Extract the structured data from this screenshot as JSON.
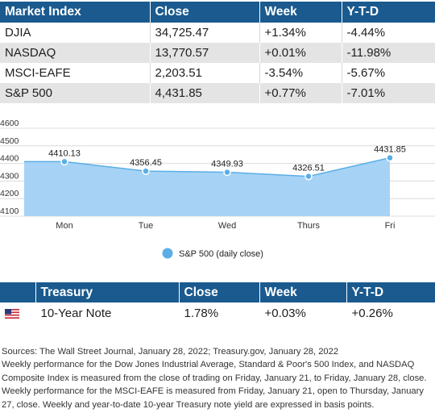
{
  "market_table": {
    "headers": [
      "Market Index",
      "Close",
      "Week",
      "Y-T-D"
    ],
    "rows": [
      [
        "DJIA",
        "34,725.47",
        "+1.34%",
        "-4.44%"
      ],
      [
        "NASDAQ",
        "13,770.57",
        "+0.01%",
        "-11.98%"
      ],
      [
        "MSCI-EAFE",
        "2,203.51",
        "-3.54%",
        "-5.67%"
      ],
      [
        "S&P 500",
        "4,431.85",
        "+0.77%",
        "-7.01%"
      ]
    ]
  },
  "chart_data": {
    "type": "area",
    "categories": [
      "Mon",
      "Tue",
      "Wed",
      "Thurs",
      "Fri"
    ],
    "series": [
      {
        "name": "S&P 500 (daily close)",
        "values": [
          4410.13,
          4356.45,
          4349.93,
          4326.51,
          4431.85
        ],
        "color": "#5aaee6"
      }
    ],
    "data_labels": [
      "4410.13",
      "4356.45",
      "4349.93",
      "4326.51",
      "4431.85"
    ],
    "y_ticks": [
      "4100",
      "4200",
      "4300",
      "4400",
      "4500",
      "4600"
    ],
    "ylim": [
      4100,
      4600
    ],
    "fill_color": "#a6d3f5",
    "grid": true,
    "legend_position": "bottom-center",
    "title": "",
    "xlabel": "",
    "ylabel": ""
  },
  "treasury_table": {
    "headers": [
      "Treasury",
      "Close",
      "Week",
      "Y-T-D"
    ],
    "row": {
      "icon": "us-flag-icon",
      "label": "10-Year Note",
      "close": "1.78%",
      "week": "+0.03%",
      "ytd": "+0.26%"
    }
  },
  "notes": {
    "sources": "Sources: The Wall Street Journal, January 28, 2022; Treasury.gov, January 28, 2022",
    "body": "Weekly performance for the Dow Jones Industrial Average, Standard & Poor's 500 Index, and NASDAQ Composite Index is measured from the close of trading on Friday, January 21, to Friday, January 28, close. Weekly performance for the MSCI-EAFE is measured from Friday, January 21, open to Thursday, January 27, close. Weekly and year-to-date 10-year Treasury note yield are expressed in basis points."
  },
  "colors": {
    "header_bg": "#1a5a8e",
    "stripe": "#e4e4e4"
  }
}
